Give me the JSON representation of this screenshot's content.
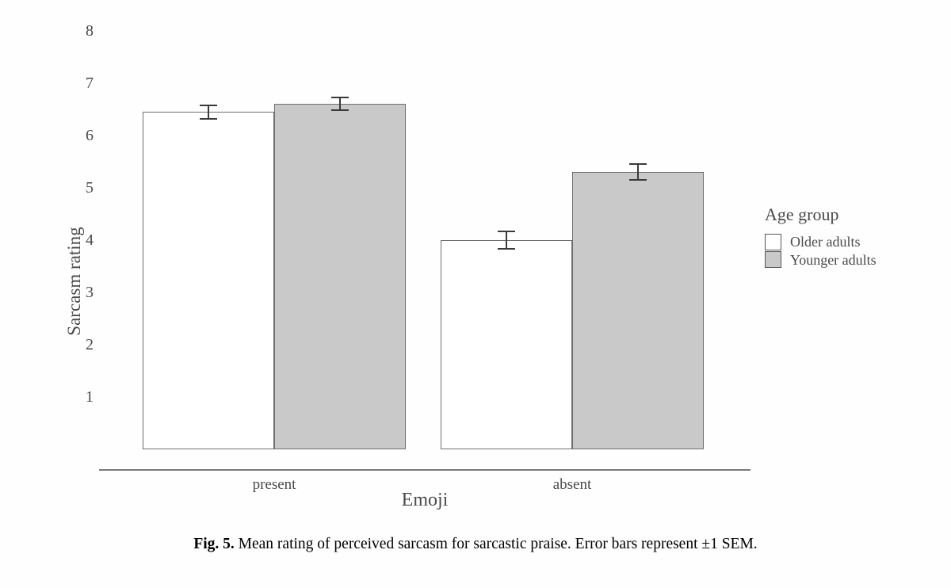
{
  "figure": {
    "caption_label": "Fig. 5.",
    "caption_text": "Mean rating of perceived sarcasm for sarcastic praise. Error bars represent ±1 SEM."
  },
  "chart_data": {
    "type": "bar",
    "title": "",
    "xlabel": "Emoji",
    "ylabel": "Sarcasm rating",
    "categories": [
      "present",
      "absent"
    ],
    "series": [
      {
        "name": "Older adults",
        "fill": "#ffffff",
        "values": [
          6.45,
          4.0
        ],
        "sem": [
          0.13,
          0.17
        ]
      },
      {
        "name": "Younger adults",
        "fill": "#c9c9c9",
        "values": [
          6.6,
          5.3
        ],
        "sem": [
          0.12,
          0.15
        ]
      }
    ],
    "ylim": [
      0,
      8
    ],
    "yticks": [
      1,
      2,
      3,
      4,
      5,
      6,
      7,
      8
    ],
    "legend_title": "Age group",
    "legend_position": "right",
    "grid": false,
    "error_bars": "±1 SEM",
    "colors": {
      "bar_border": "#6e6e6e",
      "older_fill": "#ffffff",
      "younger_fill": "#c9c9c9",
      "error_bar": "#3a3a3a",
      "axis_text": "#4a4a4a",
      "axis_line": "#7a7a7a"
    }
  }
}
